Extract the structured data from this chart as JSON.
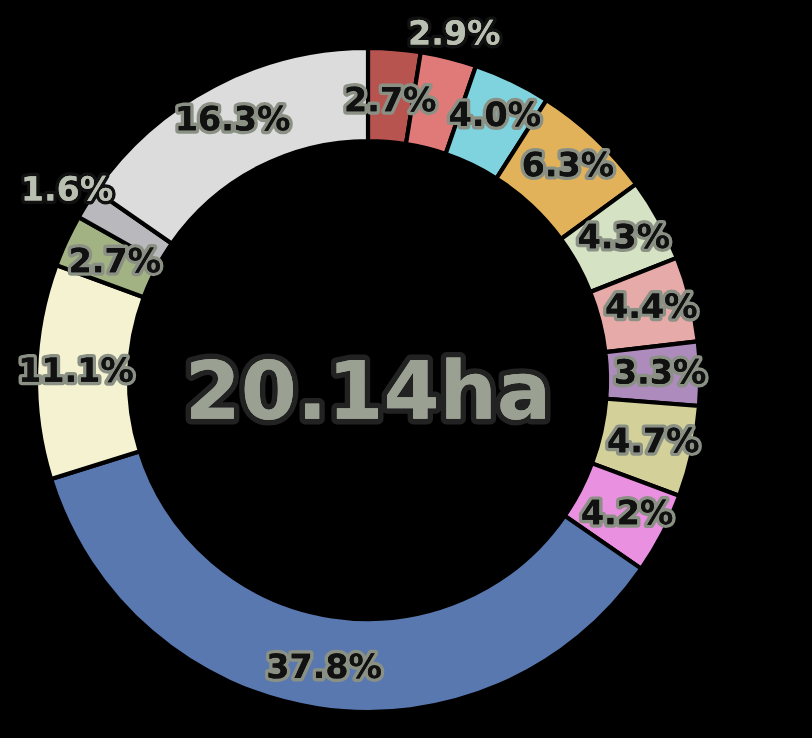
{
  "chart_data": {
    "type": "donut",
    "title": "20.14ha",
    "categories": [
      null,
      null,
      null,
      null,
      null,
      null,
      null,
      null,
      null,
      null,
      null,
      null,
      null,
      null
    ],
    "values": [
      2.7,
      2.9,
      4.0,
      6.3,
      4.3,
      4.4,
      3.3,
      4.7,
      4.2,
      37.8,
      11.1,
      2.7,
      1.6,
      16.3
    ],
    "value_labels": [
      "2.7%",
      "2.9%",
      "4.0%",
      "6.3%",
      "4.3%",
      "4.4%",
      "3.3%",
      "4.7%",
      "4.2%",
      "37.8%",
      "11.1%",
      "2.7%",
      "1.6%",
      "16.3%"
    ],
    "colors": [
      "#b85450",
      "#e07a78",
      "#7fd3df",
      "#e2b25a",
      "#d6e2c4",
      "#e6aaa8",
      "#ad8bbd",
      "#d3d09a",
      "#ea90e0",
      "#5a78b0",
      "#f4f2d0",
      "#a2b283",
      "#b9b9bd",
      "#dcdcdc"
    ]
  }
}
